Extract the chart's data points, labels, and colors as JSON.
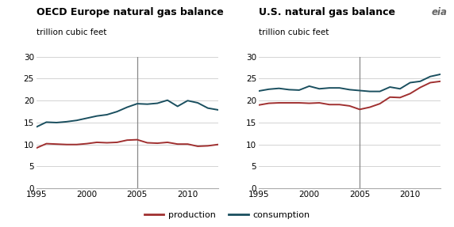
{
  "left_title": "OECD Europe natural gas balance",
  "right_title": "U.S. natural gas balance",
  "ylabel": "trillion cubic feet",
  "years": [
    1995,
    1996,
    1997,
    1998,
    1999,
    2000,
    2001,
    2002,
    2003,
    2004,
    2005,
    2006,
    2007,
    2008,
    2009,
    2010,
    2011,
    2012,
    2013
  ],
  "europe_production": [
    9.2,
    10.2,
    10.1,
    10.0,
    10.0,
    10.2,
    10.5,
    10.4,
    10.5,
    11.0,
    11.1,
    10.4,
    10.3,
    10.5,
    10.1,
    10.1,
    9.6,
    9.7,
    10.0
  ],
  "europe_consumption": [
    14.0,
    15.1,
    15.0,
    15.2,
    15.5,
    16.0,
    16.5,
    16.8,
    17.5,
    18.5,
    19.3,
    19.2,
    19.4,
    20.1,
    18.7,
    20.0,
    19.5,
    18.3,
    17.9
  ],
  "us_production": [
    19.0,
    19.4,
    19.5,
    19.5,
    19.5,
    19.4,
    19.5,
    19.1,
    19.1,
    18.8,
    18.0,
    18.5,
    19.3,
    20.8,
    20.7,
    21.6,
    23.0,
    24.1,
    24.4
  ],
  "us_consumption": [
    22.2,
    22.6,
    22.8,
    22.5,
    22.4,
    23.3,
    22.7,
    22.9,
    22.9,
    22.5,
    22.3,
    22.1,
    22.1,
    23.1,
    22.7,
    24.1,
    24.4,
    25.5,
    26.0
  ],
  "production_color": "#a03030",
  "consumption_color": "#1a4f5f",
  "vline_year": 2005,
  "ylim": [
    0,
    30
  ],
  "yticks": [
    0,
    5,
    10,
    15,
    20,
    25,
    30
  ],
  "xticks": [
    1995,
    2000,
    2005,
    2010
  ],
  "xmin": 1995,
  "xmax": 2013,
  "background_color": "#ffffff",
  "grid_color": "#cccccc",
  "title_fontsize": 9.0,
  "subtitle_fontsize": 7.5,
  "tick_fontsize": 7.5,
  "legend_fontsize": 8,
  "vline_color": "#888888",
  "line_width": 1.4
}
